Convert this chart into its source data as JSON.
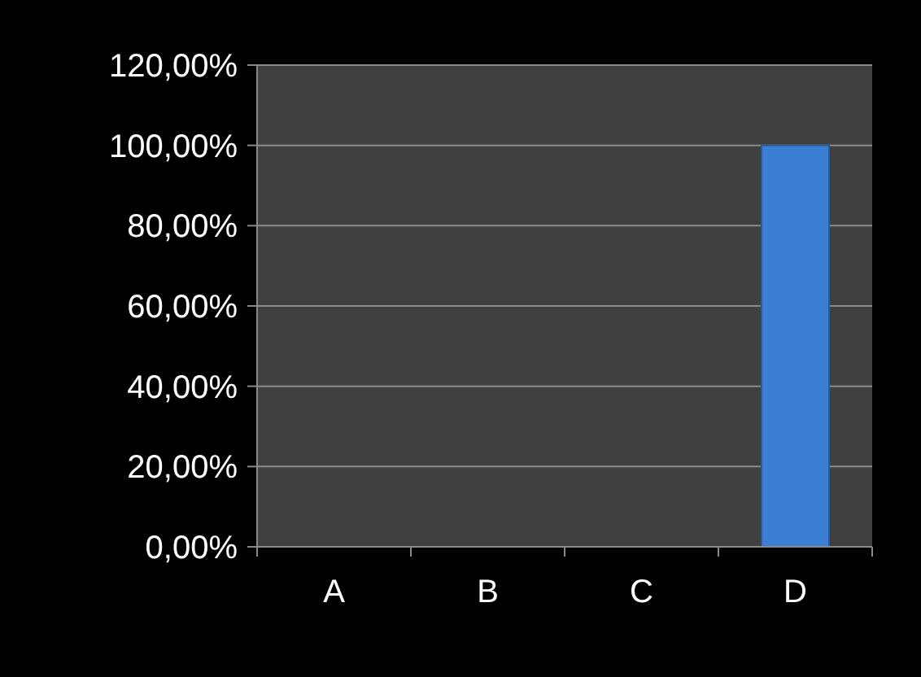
{
  "chart_data": {
    "type": "bar",
    "categories": [
      "A",
      "B",
      "C",
      "D"
    ],
    "values": [
      0,
      0,
      0,
      100
    ],
    "color": "#3b7fd4",
    "ylim": [
      0,
      120
    ],
    "yticks": [
      {
        "value": 0,
        "label": "0,00%"
      },
      {
        "value": 20,
        "label": "20,00%"
      },
      {
        "value": 40,
        "label": "40,00%"
      },
      {
        "value": 60,
        "label": "60,00%"
      },
      {
        "value": 80,
        "label": "80,00%"
      },
      {
        "value": 100,
        "label": "100,00%"
      },
      {
        "value": 120,
        "label": "120,00%"
      }
    ],
    "grid": "y"
  }
}
